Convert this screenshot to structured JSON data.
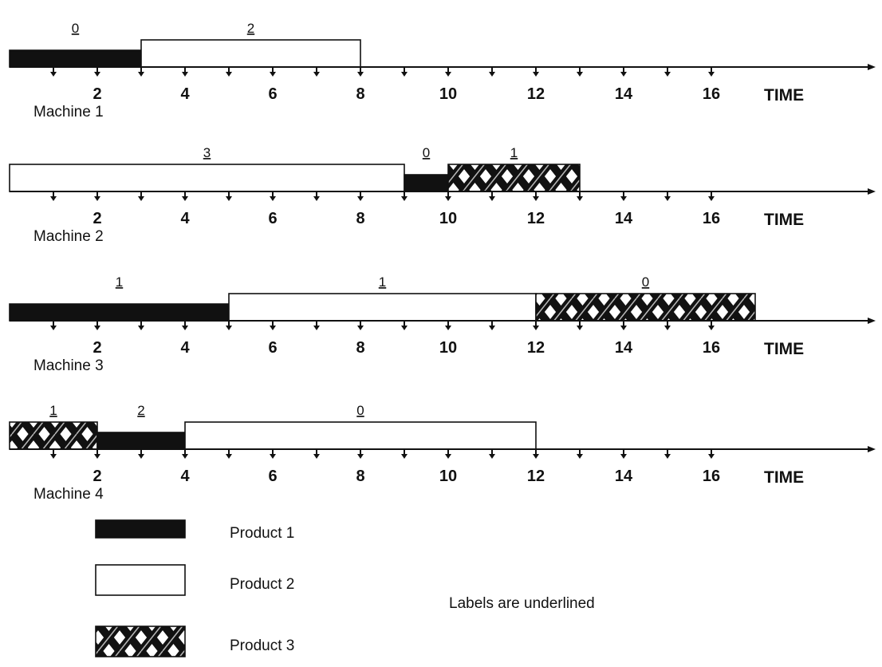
{
  "chart_data": {
    "type": "gantt",
    "axis_label": "TIME",
    "tick_labels": [
      "2",
      "4",
      "6",
      "8",
      "10",
      "12",
      "14",
      "16"
    ],
    "tick_values": [
      2,
      4,
      6,
      8,
      10,
      12,
      14,
      16
    ],
    "minor_ticks": [
      1,
      2,
      3,
      4,
      5,
      6,
      7,
      8,
      9,
      10,
      11,
      12,
      13,
      14,
      15,
      16
    ],
    "xlim": [
      0,
      20
    ],
    "machines": [
      {
        "name": "Machine 1",
        "segments": [
          {
            "product": "Product 1",
            "start": 0,
            "end": 3,
            "label": "0"
          },
          {
            "product": "Product 2",
            "start": 3,
            "end": 8,
            "label": "2"
          }
        ]
      },
      {
        "name": "Machine 2",
        "segments": [
          {
            "product": "Product 2",
            "start": 0,
            "end": 9,
            "label": "3"
          },
          {
            "product": "Product 1",
            "start": 9,
            "end": 10,
            "label": "0"
          },
          {
            "product": "Product 3",
            "start": 10,
            "end": 13,
            "label": "1"
          }
        ]
      },
      {
        "name": "Machine 3",
        "segments": [
          {
            "product": "Product 1",
            "start": 0,
            "end": 5,
            "label": "1"
          },
          {
            "product": "Product 2",
            "start": 5,
            "end": 12,
            "label": "1"
          },
          {
            "product": "Product 3",
            "start": 12,
            "end": 17,
            "label": "0"
          }
        ]
      },
      {
        "name": "Machine 4",
        "segments": [
          {
            "product": "Product 3",
            "start": 0,
            "end": 2,
            "label": "1"
          },
          {
            "product": "Product 1",
            "start": 2,
            "end": 4,
            "label": "2"
          },
          {
            "product": "Product 2",
            "start": 4,
            "end": 12,
            "label": "0"
          }
        ]
      }
    ],
    "legend": [
      {
        "product": "Product 1",
        "label": "Product 1",
        "fill": "solid-black"
      },
      {
        "product": "Product 2",
        "label": "Product 2",
        "fill": "white"
      },
      {
        "product": "Product 3",
        "label": "Product 3",
        "fill": "crosshatch"
      }
    ],
    "note": "Labels are underlined"
  }
}
